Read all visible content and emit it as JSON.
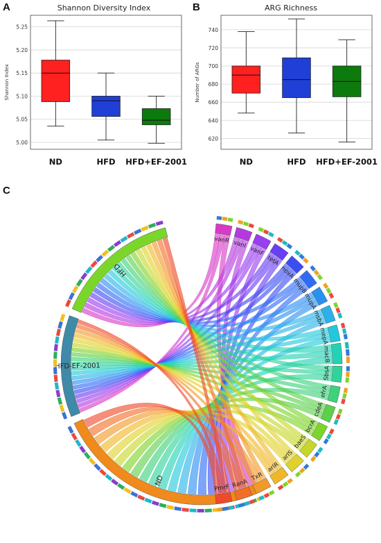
{
  "panels": {
    "a": {
      "letter": "A",
      "title": "Shannon Diversity Index"
    },
    "b": {
      "letter": "B",
      "title": "ARG Richness"
    },
    "c": {
      "letter": "C"
    }
  },
  "colors": {
    "ND": "#ff2020",
    "HFD": "#1f3fd6",
    "HFD+EF-2001": "#0d7a0d"
  },
  "chart_data": [
    {
      "type": "box",
      "title": "Shannon Diversity Index",
      "xlabel": "",
      "ylabel": "Shannon Index",
      "ylim": [
        4.985,
        5.275
      ],
      "yticks": [
        5.0,
        5.05,
        5.1,
        5.15,
        5.2,
        5.25
      ],
      "grid": true,
      "categories": [
        "ND",
        "HFD",
        "HFD+EF-2001"
      ],
      "boxes": [
        {
          "group": "ND",
          "min": 5.035,
          "q1": 5.088,
          "median": 5.15,
          "q3": 5.178,
          "max": 5.263
        },
        {
          "group": "HFD",
          "min": 5.005,
          "q1": 5.056,
          "median": 5.09,
          "q3": 5.1,
          "max": 5.15
        },
        {
          "group": "HFD+EF-2001",
          "min": 4.998,
          "q1": 5.038,
          "median": 5.048,
          "q3": 5.073,
          "max": 5.1
        }
      ]
    },
    {
      "type": "box",
      "title": "ARG Richness",
      "xlabel": "",
      "ylabel": "Number of ARGs",
      "ylim": [
        608,
        756
      ],
      "yticks": [
        620,
        640,
        660,
        680,
        700,
        720,
        740
      ],
      "grid": true,
      "categories": [
        "ND",
        "HFD",
        "HFD+EF-2001"
      ],
      "boxes": [
        {
          "group": "ND",
          "min": 648,
          "q1": 670,
          "median": 690,
          "q3": 700,
          "max": 738
        },
        {
          "group": "HFD",
          "min": 626,
          "q1": 665,
          "median": 685,
          "q3": 709,
          "max": 752
        },
        {
          "group": "HFD+EF-2001",
          "min": 616,
          "q1": 666,
          "median": 683,
          "q3": 700,
          "max": 729
        }
      ]
    },
    {
      "type": "chord",
      "groups": [
        {
          "name": "HFD",
          "color": "#7bd62a"
        },
        {
          "name": "HFD-EF-2001",
          "color": "#3f8aa8"
        },
        {
          "name": "ND",
          "color": "#f08a1c"
        }
      ],
      "genes": [
        {
          "name": "vanR",
          "color": "#d83ac8"
        },
        {
          "name": "vanI",
          "color": "#b43ae0"
        },
        {
          "name": "vanF",
          "color": "#9a3ef0"
        },
        {
          "name": "tetA",
          "color": "#6a3ef2"
        },
        {
          "name": "novA",
          "color": "#3c4ef2"
        },
        {
          "name": "mupB",
          "color": "#2f6cf5"
        },
        {
          "name": "mupA",
          "color": "#2a90f0"
        },
        {
          "name": "msbA",
          "color": "#2ab2e8"
        },
        {
          "name": "mepA",
          "color": "#22c8dc"
        },
        {
          "name": "macB",
          "color": "#22d2b4"
        },
        {
          "name": "SbsA",
          "color": "#2ed49a"
        },
        {
          "name": "efrA",
          "color": "#3ed27a"
        },
        {
          "name": "cdeA",
          "color": "#5cd04a"
        },
        {
          "name": "bcrA",
          "color": "#7ed42a"
        },
        {
          "name": "baeS",
          "color": "#c6d62a"
        },
        {
          "name": "arlS",
          "color": "#e0d22a"
        },
        {
          "name": "arlR",
          "color": "#f0b828"
        },
        {
          "name": "TxR",
          "color": "#f29a28"
        },
        {
          "name": "RanA",
          "color": "#f26e26"
        },
        {
          "name": "PmrF",
          "color": "#ef4a2a"
        }
      ]
    }
  ]
}
